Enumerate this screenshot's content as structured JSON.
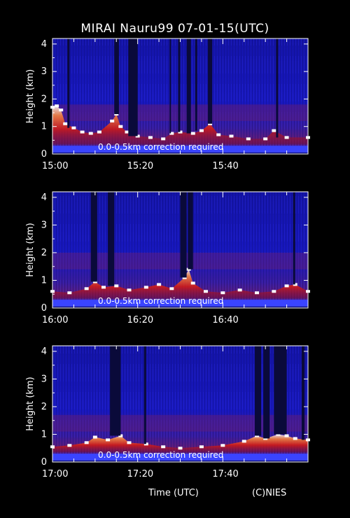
{
  "title": "MIRAI Nauru99 07-01-15(UTC)",
  "xlabel": "Time (UTC)",
  "credit": "(C)NIES",
  "chart_data": [
    {
      "type": "heatmap",
      "ylabel": "Height (km)",
      "ylim": [
        0,
        4.2
      ],
      "yticks": [
        0,
        1,
        2,
        3,
        4
      ],
      "xlim": [
        0,
        60
      ],
      "xtick_labels": [
        {
          "t": 0,
          "label": "15:00"
        },
        {
          "t": 20,
          "label": "15:20"
        },
        {
          "t": 40,
          "label": "15:40"
        }
      ],
      "annotation": "0.0-0.5km correction required",
      "dark_gaps": [
        [
          3.5,
          4
        ],
        [
          14.5,
          15.6
        ],
        [
          17.8,
          20
        ],
        [
          27.5,
          27.8
        ],
        [
          29.5,
          30
        ],
        [
          31.5,
          32.5
        ],
        [
          33.5,
          34
        ],
        [
          36.5,
          37.5
        ],
        [
          52.5,
          53
        ]
      ],
      "cloud_base": [
        {
          "t": 0,
          "h": 1.7
        },
        {
          "t": 1,
          "h": 1.75
        },
        {
          "t": 2,
          "h": 1.6
        },
        {
          "t": 3,
          "h": 1.1
        },
        {
          "t": 5,
          "h": 0.95
        },
        {
          "t": 7,
          "h": 0.8
        },
        {
          "t": 9,
          "h": 0.75
        },
        {
          "t": 11,
          "h": 0.8
        },
        {
          "t": 14,
          "h": 1.2
        },
        {
          "t": 15,
          "h": 1.45
        },
        {
          "t": 16,
          "h": 1.0
        },
        {
          "t": 17.5,
          "h": 0.8
        },
        {
          "t": 20,
          "h": 0.65
        },
        {
          "t": 23,
          "h": 0.6
        },
        {
          "t": 26,
          "h": 0.55
        },
        {
          "t": 28,
          "h": 0.75
        },
        {
          "t": 30,
          "h": 0.8
        },
        {
          "t": 33,
          "h": 0.75
        },
        {
          "t": 35,
          "h": 0.85
        },
        {
          "t": 37,
          "h": 1.1
        },
        {
          "t": 39,
          "h": 0.7
        },
        {
          "t": 42,
          "h": 0.65
        },
        {
          "t": 46,
          "h": 0.55
        },
        {
          "t": 50,
          "h": 0.55
        },
        {
          "t": 52,
          "h": 0.85
        },
        {
          "t": 55,
          "h": 0.6
        },
        {
          "t": 60,
          "h": 0.6
        }
      ],
      "upper_layer_km": 1.5
    },
    {
      "type": "heatmap",
      "ylabel": "Height (km)",
      "ylim": [
        0,
        4.2
      ],
      "yticks": [
        0,
        1,
        2,
        3,
        4
      ],
      "xlim": [
        0,
        60
      ],
      "xtick_labels": [
        {
          "t": 0,
          "label": "16:00"
        },
        {
          "t": 20,
          "label": "16:20"
        },
        {
          "t": 40,
          "label": "16:40"
        }
      ],
      "annotation": "0.0-0.5km correction required",
      "dark_gaps": [
        [
          9,
          10.5
        ],
        [
          13,
          14.5
        ],
        [
          30,
          31.5
        ],
        [
          31.8,
          33
        ],
        [
          56.5,
          57
        ]
      ],
      "cloud_base": [
        {
          "t": 0,
          "h": 0.6
        },
        {
          "t": 4,
          "h": 0.55
        },
        {
          "t": 8,
          "h": 0.7
        },
        {
          "t": 10,
          "h": 0.95
        },
        {
          "t": 12,
          "h": 0.75
        },
        {
          "t": 15,
          "h": 0.8
        },
        {
          "t": 18,
          "h": 0.65
        },
        {
          "t": 22,
          "h": 0.75
        },
        {
          "t": 25,
          "h": 0.85
        },
        {
          "t": 28,
          "h": 0.7
        },
        {
          "t": 31,
          "h": 1.1
        },
        {
          "t": 32,
          "h": 1.4
        },
        {
          "t": 33,
          "h": 0.9
        },
        {
          "t": 36,
          "h": 0.6
        },
        {
          "t": 40,
          "h": 0.55
        },
        {
          "t": 44,
          "h": 0.65
        },
        {
          "t": 48,
          "h": 0.55
        },
        {
          "t": 52,
          "h": 0.6
        },
        {
          "t": 55,
          "h": 0.8
        },
        {
          "t": 57,
          "h": 0.85
        },
        {
          "t": 60,
          "h": 0.6
        }
      ],
      "upper_layer_km": 1.7
    },
    {
      "type": "heatmap",
      "ylabel": "Height (km)",
      "ylim": [
        0,
        4.2
      ],
      "yticks": [
        0,
        1,
        2,
        3,
        4
      ],
      "xlim": [
        0,
        60
      ],
      "xtick_labels": [
        {
          "t": 0,
          "label": "17:00"
        },
        {
          "t": 20,
          "label": "17:20"
        },
        {
          "t": 40,
          "label": "17:40"
        }
      ],
      "annotation": "0.0-0.5km correction required",
      "dark_gaps": [
        [
          13.5,
          16
        ],
        [
          21.5,
          22
        ],
        [
          47.5,
          49
        ],
        [
          49.5,
          51
        ],
        [
          52,
          55
        ],
        [
          58.5,
          59.2
        ]
      ],
      "cloud_base": [
        {
          "t": 0,
          "h": 0.55
        },
        {
          "t": 4,
          "h": 0.6
        },
        {
          "t": 8,
          "h": 0.7
        },
        {
          "t": 10,
          "h": 0.9
        },
        {
          "t": 13,
          "h": 0.8
        },
        {
          "t": 16,
          "h": 0.95
        },
        {
          "t": 18,
          "h": 0.7
        },
        {
          "t": 22,
          "h": 0.65
        },
        {
          "t": 26,
          "h": 0.55
        },
        {
          "t": 30,
          "h": 0.5
        },
        {
          "t": 35,
          "h": 0.55
        },
        {
          "t": 40,
          "h": 0.6
        },
        {
          "t": 45,
          "h": 0.75
        },
        {
          "t": 48,
          "h": 0.95
        },
        {
          "t": 50,
          "h": 0.85
        },
        {
          "t": 53,
          "h": 1.0
        },
        {
          "t": 55,
          "h": 0.95
        },
        {
          "t": 57,
          "h": 0.85
        },
        {
          "t": 60,
          "h": 0.8
        }
      ],
      "upper_layer_km": 1.4
    }
  ]
}
